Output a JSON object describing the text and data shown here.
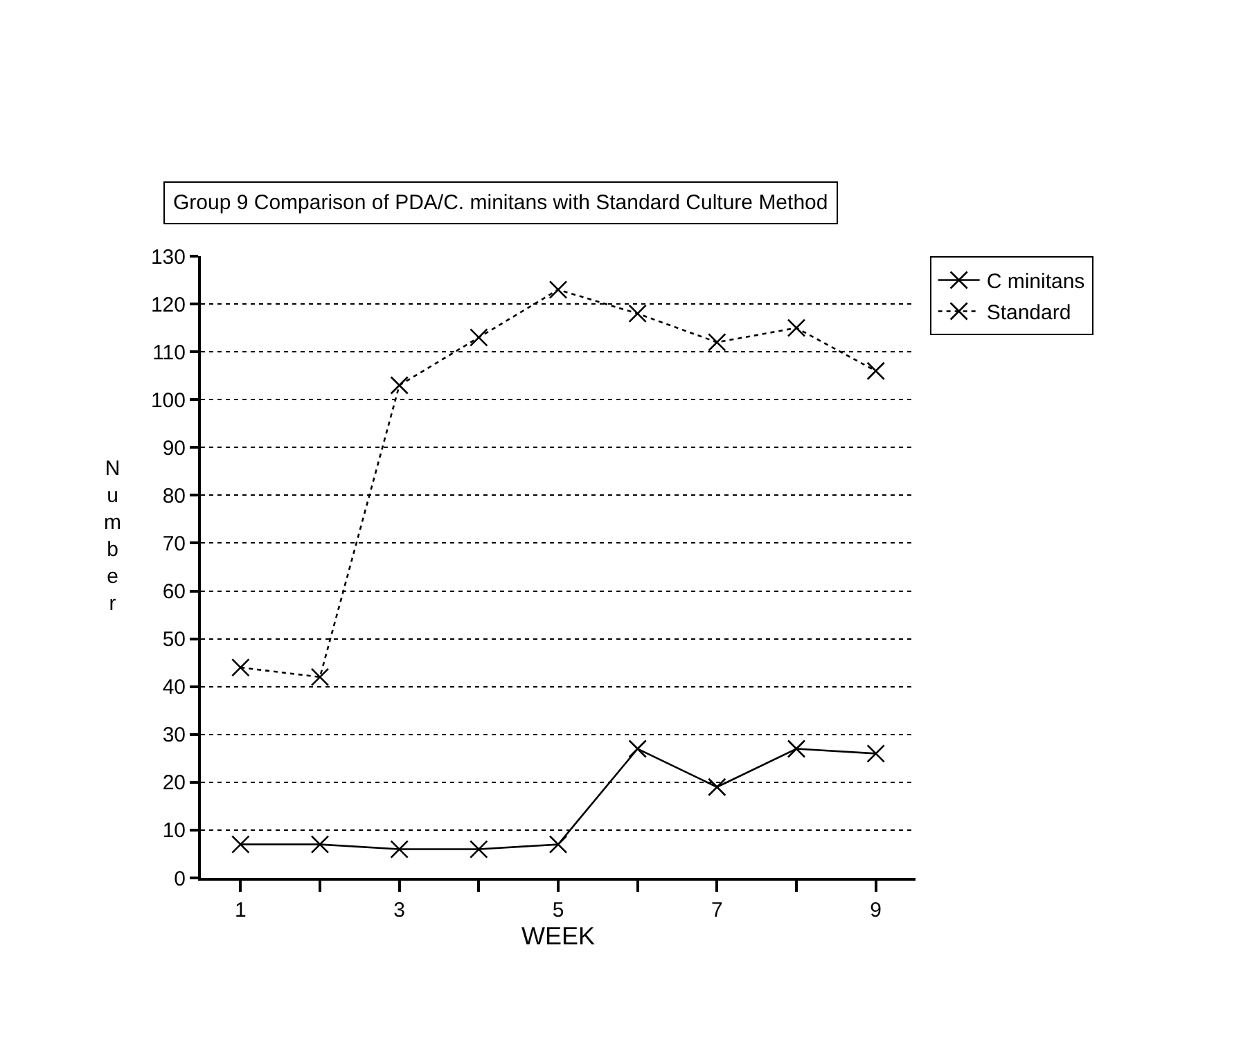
{
  "chart_data": {
    "type": "line",
    "title": "Group 9 Comparison of PDA/C. minitans with Standard Culture Method",
    "xlabel": "WEEK",
    "ylabel": "Number",
    "categories": [
      "1",
      null,
      "3",
      null,
      "5",
      null,
      "7",
      null,
      "9"
    ],
    "series": [
      {
        "name": "C minitans",
        "color": "#000000",
        "line_style": "solid",
        "values": [
          7,
          7,
          6,
          6,
          7,
          27,
          19,
          27,
          26
        ]
      },
      {
        "name": "Standard",
        "color": "#000000",
        "line_style": "dotted",
        "values": [
          44,
          42,
          103,
          113,
          123,
          118,
          112,
          115,
          106
        ]
      }
    ],
    "ylim": [
      0,
      130
    ],
    "yticks": [
      0,
      10,
      20,
      30,
      40,
      50,
      60,
      70,
      80,
      90,
      100,
      110,
      120,
      130
    ],
    "grid": "y",
    "legend": "top right",
    "marker": "cross"
  }
}
